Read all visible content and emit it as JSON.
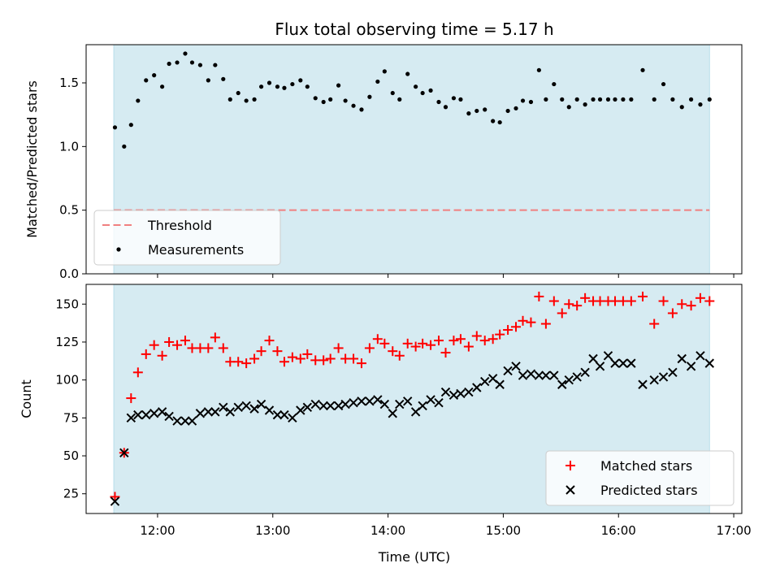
{
  "chart_data": {
    "type": "scatter",
    "title": "Flux total observing time = 5.17 h",
    "xlabel": "Time (UTC)",
    "x_unit": "hours UTC",
    "xlim": [
      11.38,
      17.07
    ],
    "x_ticks": [
      12,
      13,
      14,
      15,
      16,
      17
    ],
    "x_tick_labels": [
      "12:00",
      "13:00",
      "14:00",
      "15:00",
      "16:00",
      "17:00"
    ],
    "shaded_span": [
      11.62,
      16.79
    ],
    "shade_color": "#add8e6",
    "top_panel": {
      "ylabel": "Matched/Predicted stars",
      "ylim": [
        0,
        1.8
      ],
      "y_ticks": [
        0,
        0.5,
        1.0,
        1.5
      ],
      "y_tick_labels": [
        "0.0",
        "0.5",
        "1.0",
        "1.5"
      ],
      "legend_position": "lower-left",
      "threshold": {
        "name": "Threshold",
        "value": 0.5,
        "color": "#f08080",
        "style": "dashed"
      },
      "measurements": {
        "name": "Measurements",
        "color": "#000000",
        "x": [
          11.63,
          11.71,
          11.77,
          11.83,
          11.9,
          11.97,
          12.04,
          12.1,
          12.17,
          12.24,
          12.3,
          12.37,
          12.44,
          12.5,
          12.57,
          12.63,
          12.7,
          12.77,
          12.84,
          12.9,
          12.97,
          13.04,
          13.1,
          13.17,
          13.24,
          13.3,
          13.37,
          13.44,
          13.5,
          13.57,
          13.63,
          13.7,
          13.77,
          13.84,
          13.91,
          13.97,
          14.04,
          14.1,
          14.17,
          14.24,
          14.3,
          14.37,
          14.44,
          14.5,
          14.57,
          14.63,
          14.7,
          14.77,
          14.84,
          14.91,
          14.97,
          15.04,
          15.11,
          15.17,
          15.24,
          15.31,
          15.37,
          15.44,
          15.51,
          15.57,
          15.64,
          15.71,
          15.78,
          15.84,
          15.91,
          15.97,
          16.04,
          16.11,
          16.21,
          16.31,
          16.39,
          16.47,
          16.55,
          16.63,
          16.71,
          16.79
        ],
        "y": [
          1.15,
          1.0,
          1.17,
          1.36,
          1.52,
          1.56,
          1.47,
          1.65,
          1.66,
          1.73,
          1.66,
          1.64,
          1.52,
          1.64,
          1.53,
          1.37,
          1.42,
          1.36,
          1.37,
          1.47,
          1.5,
          1.47,
          1.46,
          1.49,
          1.52,
          1.47,
          1.38,
          1.35,
          1.37,
          1.48,
          1.36,
          1.32,
          1.29,
          1.39,
          1.51,
          1.59,
          1.42,
          1.37,
          1.57,
          1.47,
          1.42,
          1.44,
          1.35,
          1.31,
          1.38,
          1.37,
          1.26,
          1.28,
          1.29,
          1.2,
          1.19,
          1.28,
          1.3,
          1.36,
          1.35,
          1.6,
          1.37,
          1.49,
          1.37,
          1.31,
          1.37,
          1.33,
          1.37,
          1.37,
          1.37,
          1.37,
          1.37,
          1.37,
          1.6,
          1.37,
          1.49,
          1.37,
          1.31,
          1.37,
          1.33,
          1.37
        ]
      }
    },
    "bottom_panel": {
      "ylabel": "Count",
      "ylim": [
        12,
        163
      ],
      "y_ticks": [
        25,
        50,
        75,
        100,
        125,
        150
      ],
      "y_tick_labels": [
        "25",
        "50",
        "75",
        "100",
        "125",
        "150"
      ],
      "legend_position": "lower-right",
      "series": [
        {
          "name": "Matched stars",
          "marker": "plus",
          "color": "#ff0000",
          "x": [
            11.63,
            11.71,
            11.77,
            11.83,
            11.9,
            11.97,
            12.04,
            12.1,
            12.17,
            12.24,
            12.3,
            12.37,
            12.44,
            12.5,
            12.57,
            12.63,
            12.7,
            12.77,
            12.84,
            12.9,
            12.97,
            13.04,
            13.1,
            13.17,
            13.24,
            13.3,
            13.37,
            13.44,
            13.5,
            13.57,
            13.63,
            13.7,
            13.77,
            13.84,
            13.91,
            13.97,
            14.04,
            14.1,
            14.17,
            14.24,
            14.3,
            14.37,
            14.44,
            14.5,
            14.57,
            14.63,
            14.7,
            14.77,
            14.84,
            14.91,
            14.97,
            15.04,
            15.11,
            15.17,
            15.24,
            15.31,
            15.37,
            15.44,
            15.51,
            15.57,
            15.64,
            15.71,
            15.78,
            15.84,
            15.91,
            15.97,
            16.04,
            16.11,
            16.21,
            16.31,
            16.39,
            16.47,
            16.55,
            16.63,
            16.71,
            16.79
          ],
          "y": [
            23,
            52,
            88,
            105,
            117,
            123,
            116,
            125,
            123,
            126,
            121,
            121,
            121,
            128,
            121,
            112,
            112,
            111,
            114,
            119,
            126,
            119,
            112,
            115,
            114,
            117,
            113,
            113,
            114,
            121,
            114,
            114,
            111,
            121,
            127,
            124,
            119,
            116,
            124,
            122,
            124,
            123,
            126,
            118,
            126,
            127,
            122,
            129,
            126,
            127,
            130,
            133,
            135,
            139,
            138,
            155,
            137,
            152,
            144,
            150,
            149,
            154,
            152,
            152,
            152,
            152,
            152,
            152,
            155,
            137,
            152,
            144,
            150,
            149,
            154,
            152
          ]
        },
        {
          "name": "Predicted stars",
          "marker": "x",
          "color": "#000000",
          "x": [
            11.63,
            11.71,
            11.77,
            11.83,
            11.9,
            11.97,
            12.04,
            12.1,
            12.17,
            12.24,
            12.3,
            12.37,
            12.44,
            12.5,
            12.57,
            12.63,
            12.7,
            12.77,
            12.84,
            12.9,
            12.97,
            13.04,
            13.1,
            13.17,
            13.24,
            13.3,
            13.37,
            13.44,
            13.5,
            13.57,
            13.63,
            13.7,
            13.77,
            13.84,
            13.91,
            13.97,
            14.04,
            14.1,
            14.17,
            14.24,
            14.3,
            14.37,
            14.44,
            14.5,
            14.57,
            14.63,
            14.7,
            14.77,
            14.84,
            14.91,
            14.97,
            15.04,
            15.11,
            15.17,
            15.24,
            15.31,
            15.37,
            15.44,
            15.51,
            15.57,
            15.64,
            15.71,
            15.78,
            15.84,
            15.91,
            15.97,
            16.04,
            16.11,
            16.21,
            16.31,
            16.39,
            16.47,
            16.55,
            16.63,
            16.71,
            16.79
          ],
          "y": [
            20,
            52,
            75,
            77,
            77,
            78,
            79,
            76,
            73,
            73,
            73,
            78,
            79,
            79,
            82,
            79,
            82,
            83,
            81,
            84,
            80,
            77,
            77,
            75,
            80,
            82,
            84,
            83,
            83,
            83,
            84,
            85,
            86,
            86,
            87,
            84,
            78,
            84,
            86,
            79,
            83,
            87,
            85,
            92,
            90,
            91,
            92,
            95,
            99,
            101,
            97,
            106,
            109,
            103,
            104,
            103,
            103,
            103,
            97,
            100,
            102,
            105,
            114,
            109,
            116,
            111,
            111,
            111,
            97,
            100,
            102,
            105,
            114,
            109,
            116,
            111
          ]
        }
      ]
    }
  }
}
